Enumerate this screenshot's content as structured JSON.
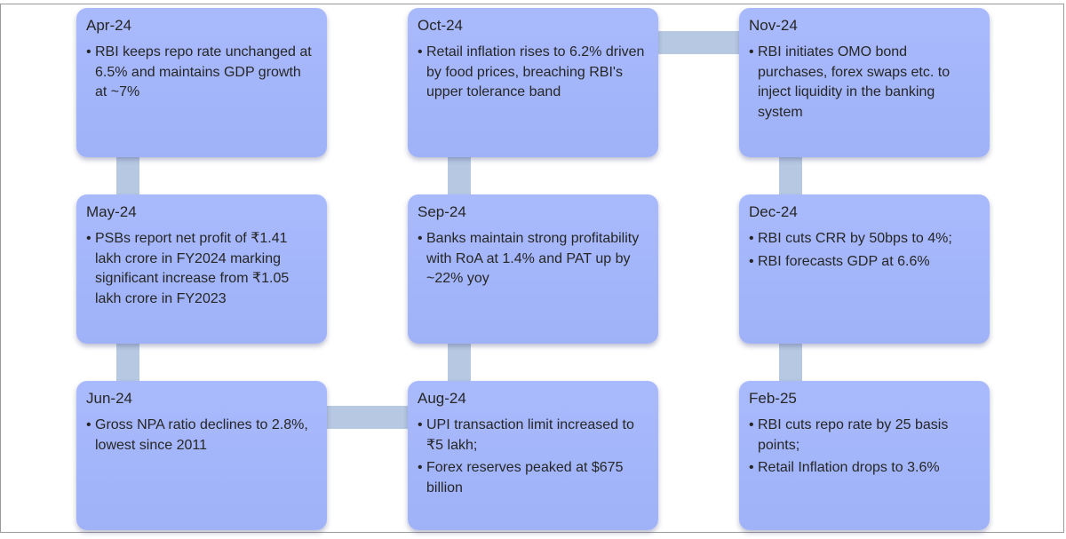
{
  "timeline": [
    {
      "id": "apr-24",
      "title": "Apr-24",
      "points": [
        "RBI keeps repo rate unchanged at 6.5% and maintains GDP growth at ~7%"
      ]
    },
    {
      "id": "may-24",
      "title": "May-24",
      "points": [
        "PSBs report net profit of ₹1.41 lakh crore in FY2024 marking significant increase from ₹1.05 lakh crore in FY2023"
      ]
    },
    {
      "id": "jun-24",
      "title": "Jun-24",
      "points": [
        "Gross NPA ratio declines to 2.8%, lowest since 2011"
      ]
    },
    {
      "id": "aug-24",
      "title": "Aug-24",
      "points": [
        "UPI transaction limit increased to ₹5 lakh;",
        "Forex reserves peaked at $675 billion"
      ]
    },
    {
      "id": "sep-24",
      "title": "Sep-24",
      "points": [
        "Banks maintain strong profitability with RoA at 1.4% and PAT up by ~22% yoy"
      ]
    },
    {
      "id": "oct-24",
      "title": "Oct-24",
      "points": [
        "Retail inflation rises to 6.2% driven by food prices, breaching RBI's upper tolerance band"
      ]
    },
    {
      "id": "nov-24",
      "title": "Nov-24",
      "points": [
        "RBI initiates OMO bond purchases, forex swaps etc. to inject liquidity in the banking system"
      ]
    },
    {
      "id": "dec-24",
      "title": "Dec-24",
      "points": [
        "RBI cuts CRR by 50bps to 4%;",
        "RBI forecasts GDP at 6.6%"
      ]
    },
    {
      "id": "feb-25",
      "title": "Feb-25",
      "points": [
        "RBI cuts repo rate by 25 basis points;",
        "Retail Inflation drops to 3.6%"
      ]
    }
  ],
  "colors": {
    "card_fill": "#a5b7fb",
    "connector": "#b7c9e2",
    "text": "#262626"
  }
}
